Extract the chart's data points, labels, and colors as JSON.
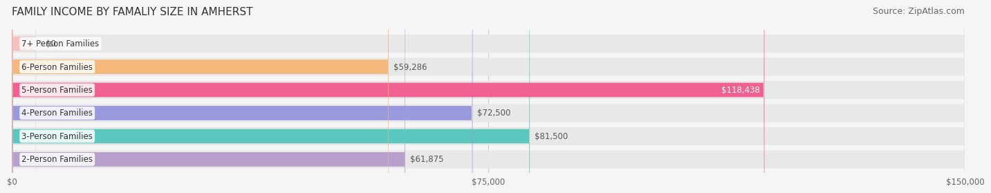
{
  "title": "FAMILY INCOME BY FAMALIY SIZE IN AMHERST",
  "source": "Source: ZipAtlas.com",
  "categories": [
    "2-Person Families",
    "3-Person Families",
    "4-Person Families",
    "5-Person Families",
    "6-Person Families",
    "7+ Person Families"
  ],
  "values": [
    61875,
    81500,
    72500,
    118438,
    59286,
    0
  ],
  "bar_colors": [
    "#b8a0cc",
    "#5bc8c0",
    "#9999dd",
    "#f06090",
    "#f5b87a",
    "#f5c0c0"
  ],
  "bar_bg_color": "#eeeeee",
  "xlim": [
    0,
    150000
  ],
  "xticks": [
    0,
    75000,
    150000
  ],
  "xtick_labels": [
    "$0",
    "$75,000",
    "$150,000"
  ],
  "value_labels": [
    "$61,875",
    "$81,500",
    "$72,500",
    "$118,438",
    "$59,286",
    "$0"
  ],
  "value_label_colors": [
    "#555555",
    "#555555",
    "#555555",
    "#ffffff",
    "#555555",
    "#555555"
  ],
  "title_fontsize": 11,
  "source_fontsize": 9,
  "label_fontsize": 8.5,
  "value_fontsize": 8.5,
  "tick_fontsize": 8.5,
  "bg_color": "#f5f5f5"
}
